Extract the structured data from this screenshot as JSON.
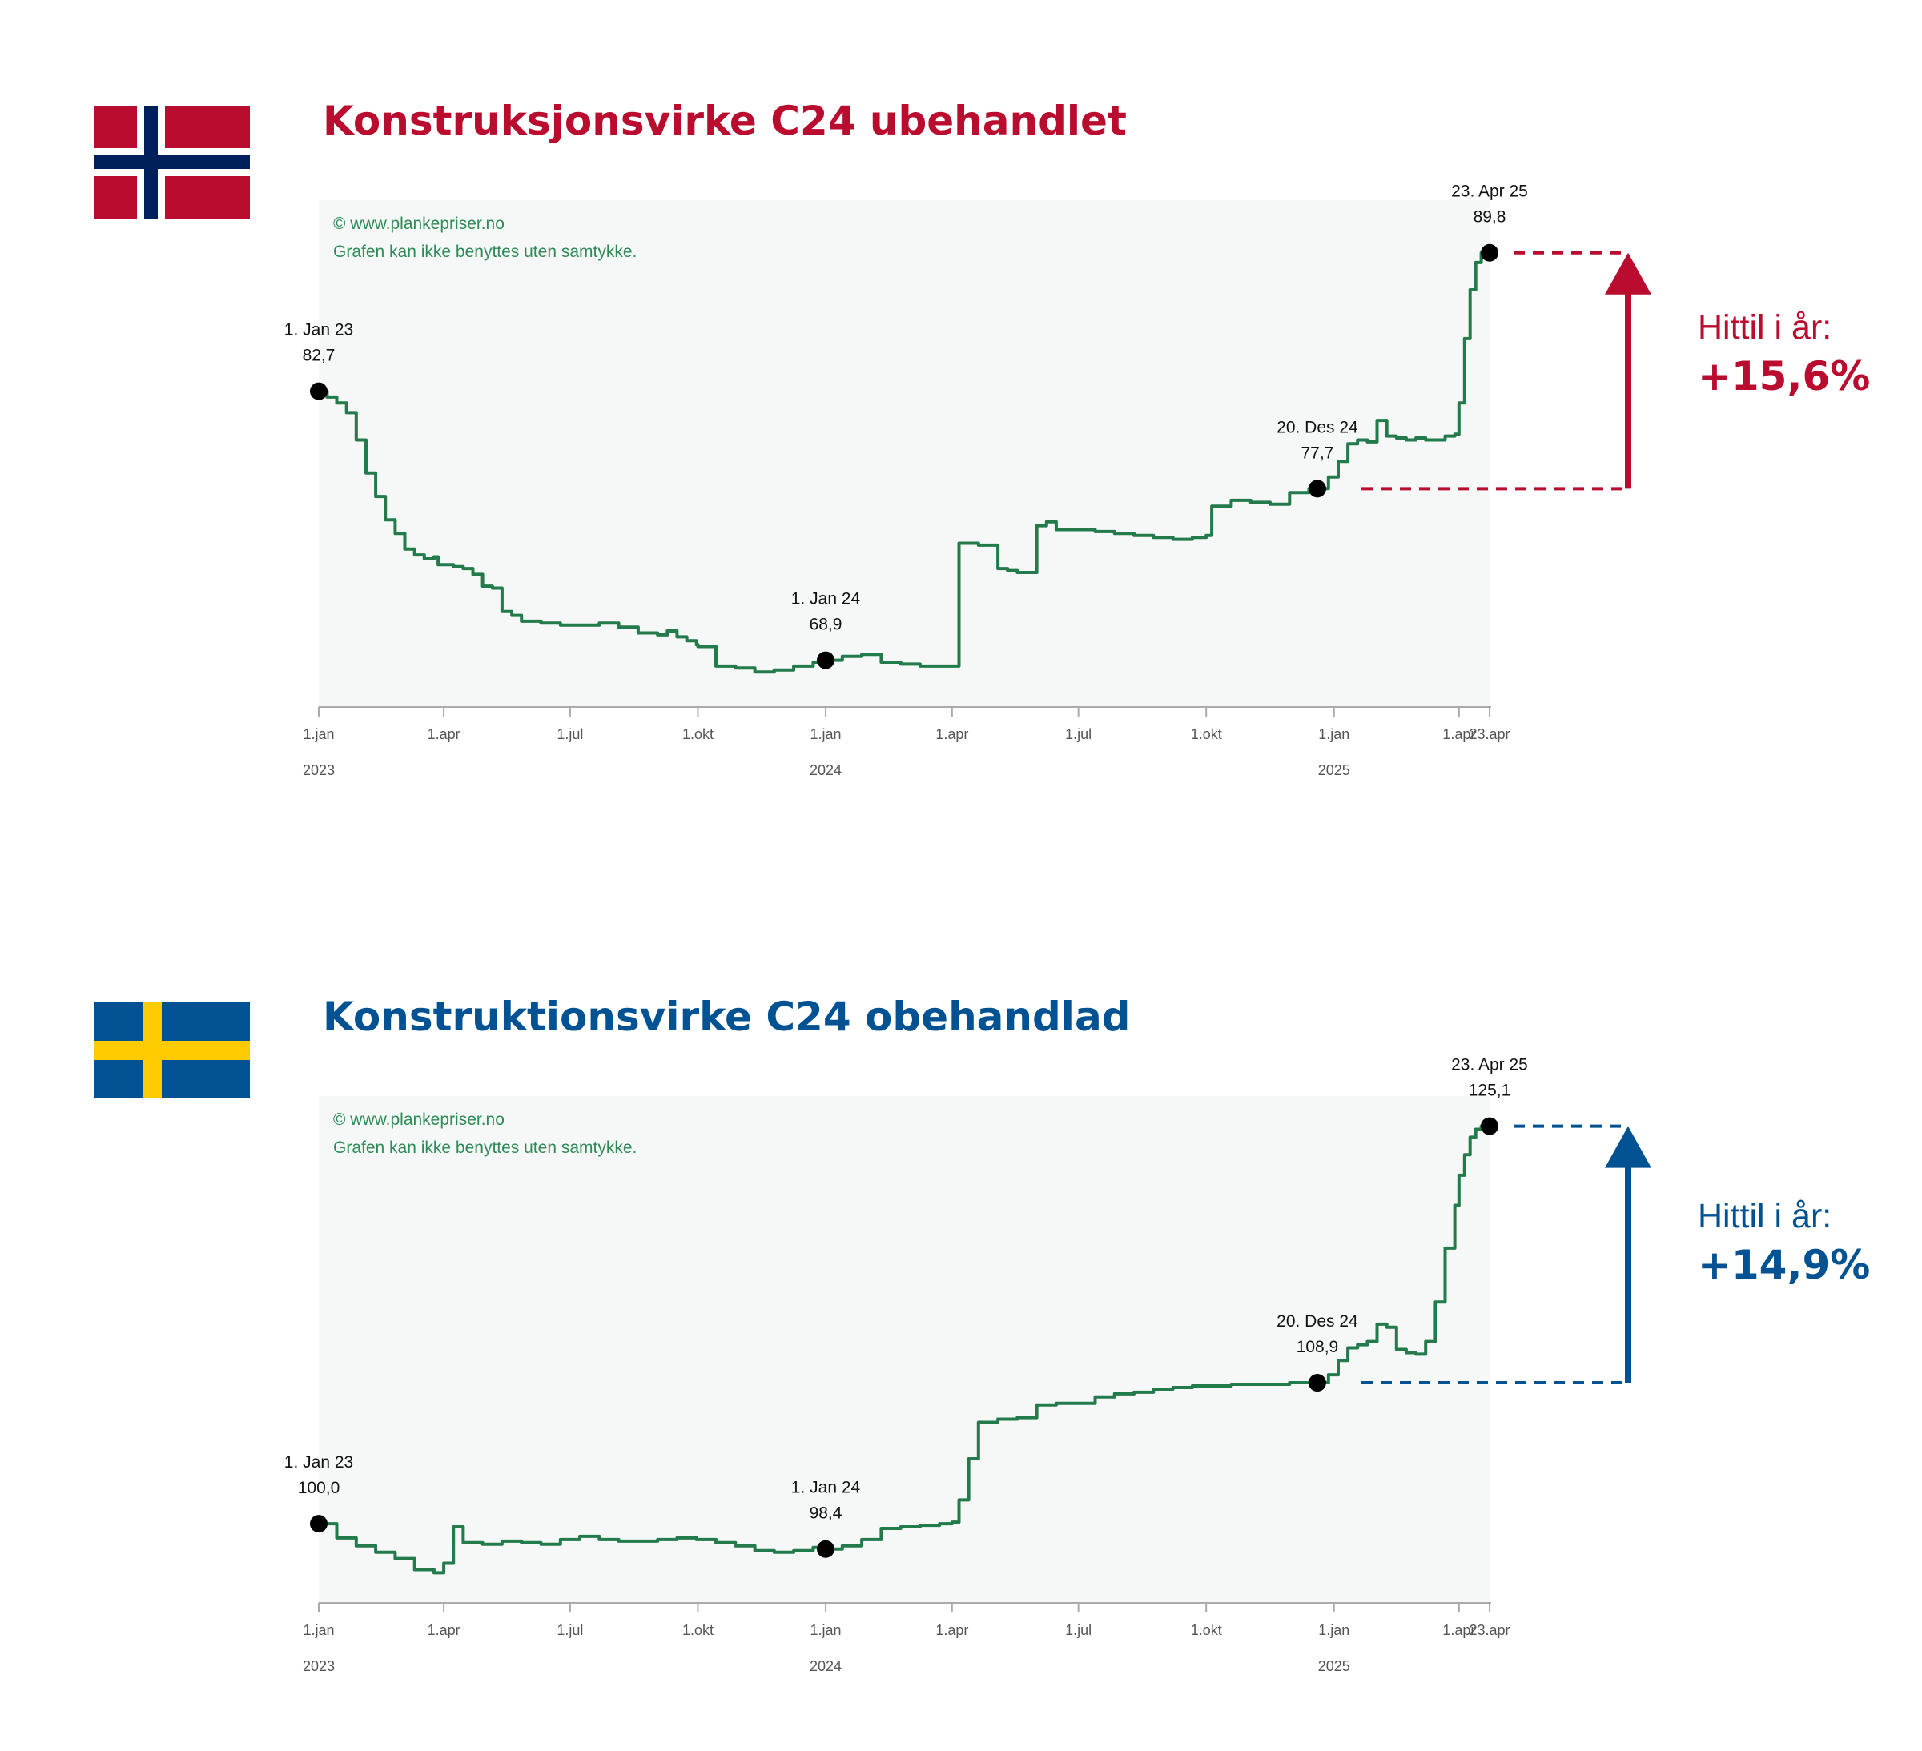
{
  "charts": [
    {
      "country": "norway",
      "flag": {
        "field": "#BA0C2F",
        "cross_outer": "#FFFFFF",
        "cross_inner": "#00205B"
      },
      "title": "Konstruksjonsvirke C24 ubehandlet",
      "accent": "#BA0C2F",
      "watermark_1": "© www.plankepriser.no",
      "watermark_2": "Grafen kan ikke benyttes uten samtykke.",
      "ytd_label": "Hittil i år:",
      "ytd_value": "+15,6%",
      "markers": [
        {
          "date_label": "1. Jan 23",
          "value_label": "82,7",
          "x": "2023-01-01",
          "y": 82.7
        },
        {
          "date_label": "1. Jan 24",
          "value_label": "68,9",
          "x": "2024-01-01",
          "y": 68.9
        },
        {
          "date_label": "20. Des 24",
          "value_label": "77,7",
          "x": "2024-12-20",
          "y": 77.7
        },
        {
          "date_label": "23. Apr 25",
          "value_label": "89,8",
          "x": "2025-04-23",
          "y": 89.8
        }
      ],
      "chart_data": {
        "type": "line",
        "title": "Konstruksjonsvirke C24 ubehandlet",
        "xlabel": "",
        "ylabel": "",
        "x_range": [
          "2023-01-01",
          "2025-04-23"
        ],
        "ylim": [
          66.5,
          92.5
        ],
        "grid": false,
        "x_tick_labels": [
          "1.jan",
          "1.apr",
          "1.jul",
          "1.okt",
          "1.jan",
          "1.apr",
          "1.jul",
          "1.okt",
          "1.jan",
          "1.apr",
          "23.apr"
        ],
        "x_tick_dates": [
          "2023-01-01",
          "2023-04-01",
          "2023-07-01",
          "2023-10-01",
          "2024-01-01",
          "2024-04-01",
          "2024-07-01",
          "2024-10-01",
          "2025-01-01",
          "2025-04-01",
          "2025-04-23"
        ],
        "year_labels": [
          "2023",
          "2024",
          "2025"
        ],
        "year_dates": [
          "2023-01-01",
          "2024-01-01",
          "2025-01-01"
        ],
        "series": [
          {
            "color": "#237A4B",
            "x": [
              "2023-01-01",
              "2023-01-07",
              "2023-01-14",
              "2023-01-21",
              "2023-01-28",
              "2023-02-04",
              "2023-02-11",
              "2023-02-18",
              "2023-02-25",
              "2023-03-04",
              "2023-03-11",
              "2023-03-18",
              "2023-03-25",
              "2023-03-28",
              "2023-04-08",
              "2023-04-15",
              "2023-04-22",
              "2023-04-29",
              "2023-05-06",
              "2023-05-13",
              "2023-05-20",
              "2023-05-27",
              "2023-06-10",
              "2023-06-24",
              "2023-07-08",
              "2023-07-22",
              "2023-08-05",
              "2023-08-19",
              "2023-09-02",
              "2023-09-09",
              "2023-09-16",
              "2023-09-23",
              "2023-09-30",
              "2023-10-01",
              "2023-10-14",
              "2023-10-28",
              "2023-11-11",
              "2023-11-25",
              "2023-12-09",
              "2023-12-23",
              "2024-01-01",
              "2024-01-13",
              "2024-01-27",
              "2024-02-10",
              "2024-02-24",
              "2024-03-09",
              "2024-03-23",
              "2024-04-01",
              "2024-04-06",
              "2024-04-20",
              "2024-05-04",
              "2024-05-11",
              "2024-05-18",
              "2024-05-25",
              "2024-06-01",
              "2024-06-08",
              "2024-06-15",
              "2024-06-29",
              "2024-07-13",
              "2024-07-27",
              "2024-08-10",
              "2024-08-24",
              "2024-09-07",
              "2024-09-21",
              "2024-10-01",
              "2024-10-05",
              "2024-10-19",
              "2024-11-02",
              "2024-11-16",
              "2024-11-30",
              "2024-12-14",
              "2024-12-20",
              "2024-12-28",
              "2025-01-04",
              "2025-01-11",
              "2025-01-18",
              "2025-01-25",
              "2025-02-01",
              "2025-02-08",
              "2025-02-15",
              "2025-02-22",
              "2025-03-01",
              "2025-03-08",
              "2025-03-15",
              "2025-03-22",
              "2025-03-29",
              "2025-04-01",
              "2025-04-05",
              "2025-04-09",
              "2025-04-13",
              "2025-04-17",
              "2025-04-20",
              "2025-04-23"
            ],
            "y": [
              82.7,
              82.4,
              82.1,
              81.6,
              80.2,
              78.5,
              77.3,
              76.1,
              75.4,
              74.6,
              74.3,
              74.1,
              74.2,
              73.8,
              73.7,
              73.6,
              73.3,
              72.7,
              72.6,
              71.4,
              71.2,
              70.9,
              70.8,
              70.7,
              70.7,
              70.8,
              70.6,
              70.3,
              70.2,
              70.4,
              70.1,
              69.9,
              69.7,
              69.6,
              68.6,
              68.5,
              68.3,
              68.4,
              68.6,
              68.8,
              68.9,
              69.1,
              69.2,
              68.8,
              68.7,
              68.6,
              68.6,
              68.6,
              74.9,
              74.8,
              73.6,
              73.5,
              73.4,
              73.4,
              75.8,
              76.0,
              75.6,
              75.6,
              75.5,
              75.4,
              75.3,
              75.2,
              75.1,
              75.2,
              75.3,
              76.8,
              77.1,
              77.0,
              76.9,
              77.5,
              77.7,
              77.7,
              78.3,
              79.1,
              80.0,
              80.2,
              80.1,
              81.2,
              80.4,
              80.3,
              80.2,
              80.3,
              80.2,
              80.2,
              80.4,
              80.5,
              82.1,
              85.4,
              87.9,
              89.3,
              89.8,
              89.6,
              89.8
            ]
          }
        ]
      }
    },
    {
      "country": "sweden",
      "flag": {
        "field": "#005293",
        "cross": "#FECB00"
      },
      "title": "Konstruktionsvirke C24 obehandlad",
      "accent": "#005293",
      "watermark_1": "© www.plankepriser.no",
      "watermark_2": "Grafen kan ikke benyttes uten samtykke.",
      "ytd_label": "Hittil i år:",
      "ytd_value": "+14,9%",
      "markers": [
        {
          "date_label": "1. Jan 23",
          "value_label": "100,0",
          "x": "2023-01-01",
          "y": 100.0
        },
        {
          "date_label": "1. Jan 24",
          "value_label": "98,4",
          "x": "2024-01-01",
          "y": 98.4
        },
        {
          "date_label": "20. Des 24",
          "value_label": "108,9",
          "x": "2024-12-20",
          "y": 108.9
        },
        {
          "date_label": "23. Apr 25",
          "value_label": "125,1",
          "x": "2025-04-23",
          "y": 125.1
        }
      ],
      "chart_data": {
        "type": "line",
        "title": "Konstruktionsvirke C24 obehandlad",
        "xlabel": "",
        "ylabel": "",
        "x_range": [
          "2023-01-01",
          "2025-04-23"
        ],
        "ylim": [
          95.0,
          127.0
        ],
        "grid": false,
        "x_tick_labels": [
          "1.jan",
          "1.apr",
          "1.jul",
          "1.okt",
          "1.jan",
          "1.apr",
          "1.jul",
          "1.okt",
          "1.jan",
          "1.apr",
          "23.apr"
        ],
        "x_tick_dates": [
          "2023-01-01",
          "2023-04-01",
          "2023-07-01",
          "2023-10-01",
          "2024-01-01",
          "2024-04-01",
          "2024-07-01",
          "2024-10-01",
          "2025-01-01",
          "2025-04-01",
          "2025-04-23"
        ],
        "year_labels": [
          "2023",
          "2024",
          "2025"
        ],
        "year_dates": [
          "2023-01-01",
          "2024-01-01",
          "2025-01-01"
        ],
        "series": [
          {
            "color": "#237A4B",
            "x": [
              "2023-01-01",
              "2023-01-14",
              "2023-01-28",
              "2023-02-11",
              "2023-02-25",
              "2023-03-11",
              "2023-03-25",
              "2023-04-01",
              "2023-04-08",
              "2023-04-15",
              "2023-04-29",
              "2023-05-13",
              "2023-05-27",
              "2023-06-10",
              "2023-06-24",
              "2023-07-08",
              "2023-07-22",
              "2023-08-05",
              "2023-08-19",
              "2023-09-02",
              "2023-09-16",
              "2023-09-30",
              "2023-10-14",
              "2023-10-28",
              "2023-11-11",
              "2023-11-25",
              "2023-12-09",
              "2023-12-23",
              "2024-01-01",
              "2024-01-13",
              "2024-01-27",
              "2024-02-10",
              "2024-02-24",
              "2024-03-09",
              "2024-03-23",
              "2024-04-01",
              "2024-04-06",
              "2024-04-13",
              "2024-04-20",
              "2024-05-04",
              "2024-05-18",
              "2024-06-01",
              "2024-06-15",
              "2024-06-29",
              "2024-07-13",
              "2024-07-27",
              "2024-08-10",
              "2024-08-24",
              "2024-09-07",
              "2024-09-21",
              "2024-10-05",
              "2024-10-19",
              "2024-11-02",
              "2024-11-16",
              "2024-11-30",
              "2024-12-14",
              "2024-12-20",
              "2024-12-28",
              "2025-01-04",
              "2025-01-11",
              "2025-01-18",
              "2025-01-25",
              "2025-02-01",
              "2025-02-08",
              "2025-02-15",
              "2025-02-22",
              "2025-03-01",
              "2025-03-08",
              "2025-03-15",
              "2025-03-22",
              "2025-03-29",
              "2025-04-01",
              "2025-04-05",
              "2025-04-09",
              "2025-04-13",
              "2025-04-17",
              "2025-04-20",
              "2025-04-23"
            ],
            "y": [
              100.0,
              99.1,
              98.6,
              98.2,
              97.8,
              97.1,
              96.9,
              97.5,
              99.8,
              98.8,
              98.7,
              98.9,
              98.8,
              98.7,
              99.0,
              99.2,
              99.0,
              98.9,
              98.9,
              99.0,
              99.1,
              99.0,
              98.8,
              98.6,
              98.3,
              98.2,
              98.3,
              98.5,
              98.4,
              98.6,
              99.0,
              99.7,
              99.8,
              99.9,
              100.0,
              100.1,
              101.5,
              104.1,
              106.4,
              106.6,
              106.7,
              107.5,
              107.6,
              107.6,
              108.0,
              108.2,
              108.3,
              108.5,
              108.6,
              108.7,
              108.7,
              108.8,
              108.8,
              108.8,
              108.9,
              108.9,
              108.9,
              109.4,
              110.3,
              111.1,
              111.3,
              111.5,
              112.6,
              112.4,
              111.0,
              110.8,
              110.7,
              111.5,
              114.0,
              117.4,
              120.1,
              122.0,
              123.3,
              124.4,
              124.9,
              125.1,
              124.9,
              125.1
            ]
          }
        ]
      }
    }
  ]
}
